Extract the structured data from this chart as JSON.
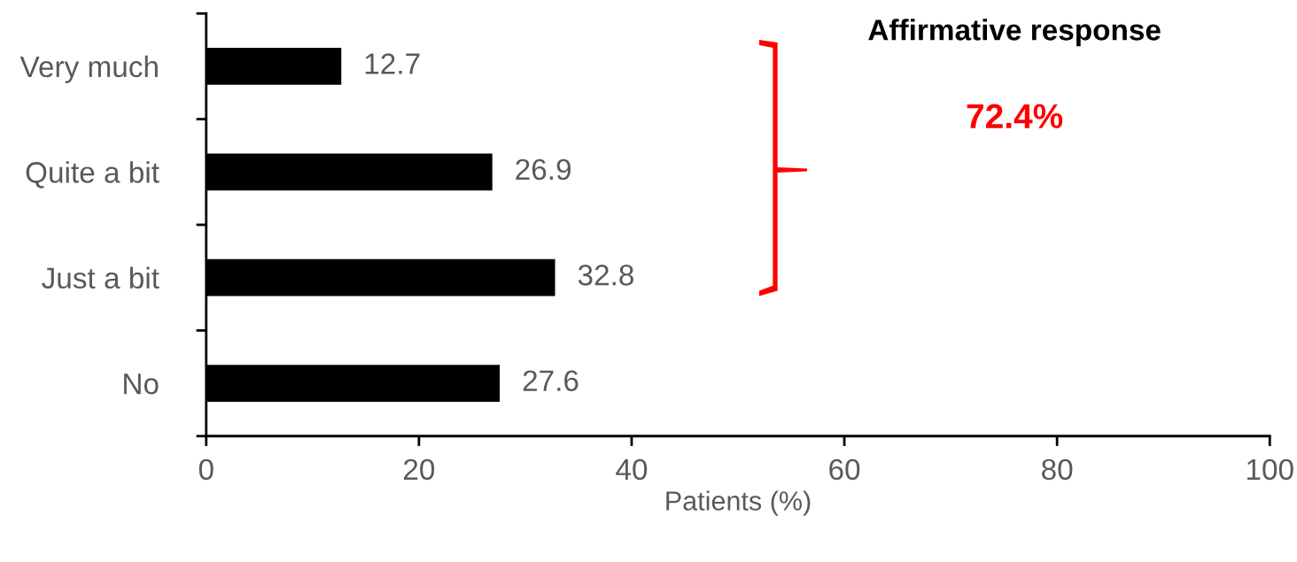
{
  "chart_data": {
    "type": "bar",
    "orientation": "horizontal",
    "categories": [
      "Very much",
      "Quite a bit",
      "Just a bit",
      "No"
    ],
    "values": [
      12.7,
      26.9,
      32.8,
      27.6
    ],
    "color": "#000000",
    "xlim": [
      0,
      100
    ],
    "xticks": [
      0,
      20,
      40,
      60,
      80,
      100
    ],
    "xlabel": "Patients (%)",
    "data_labels": true,
    "grid": false,
    "legend": false,
    "annotations": [
      "Affirmative response",
      "72.4%"
    ]
  }
}
